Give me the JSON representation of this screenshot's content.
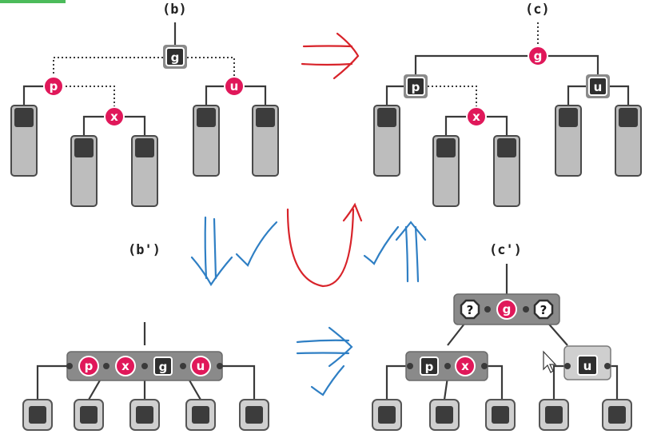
{
  "labels": {
    "b": "(b)",
    "c": "(c)",
    "b_prime": "(b')",
    "c_prime": "(c')"
  },
  "nodes": {
    "g": "g",
    "p": "p",
    "u": "u",
    "x": "x",
    "q": "?"
  },
  "colors": {
    "red_node": "#e0185a",
    "black_node": "#2f2f2f",
    "red_annotation": "#d8232a",
    "blue_annotation": "#2f7fc4"
  },
  "annotations": [
    "red-right-arrow",
    "blue-down-arrow",
    "blue-check",
    "red-u-turn-arrow",
    "blue-up-arrow",
    "blue-right-arrow",
    "mouse-cursor-icon"
  ]
}
